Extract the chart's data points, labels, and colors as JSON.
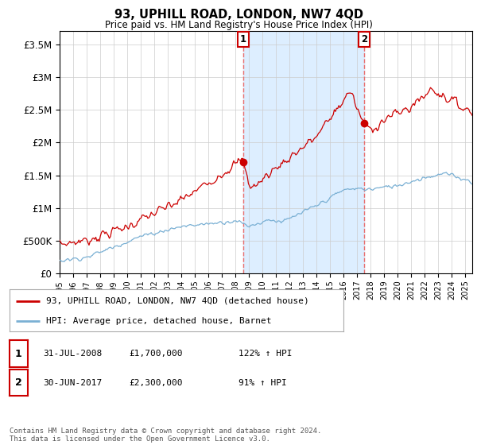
{
  "title": "93, UPHILL ROAD, LONDON, NW7 4QD",
  "subtitle": "Price paid vs. HM Land Registry's House Price Index (HPI)",
  "ylim": [
    0,
    3700000
  ],
  "yticks": [
    0,
    500000,
    1000000,
    1500000,
    2000000,
    2500000,
    3000000,
    3500000
  ],
  "xlim_start": 1995.0,
  "xlim_end": 2025.5,
  "marker1_x": 2008.58,
  "marker1_y": 1700000,
  "marker2_x": 2017.5,
  "marker2_y": 2300000,
  "red_line_color": "#cc0000",
  "blue_line_color": "#7ab0d4",
  "shaded_color": "#ddeeff",
  "vline_color": "#e87070",
  "background_color": "#ffffff",
  "grid_color": "#cccccc",
  "marker1_date": "31-JUL-2008",
  "marker1_price": "£1,700,000",
  "marker1_hpi": "122% ↑ HPI",
  "marker2_date": "30-JUN-2017",
  "marker2_price": "£2,300,000",
  "marker2_hpi": "91% ↑ HPI",
  "legend1": "93, UPHILL ROAD, LONDON, NW7 4QD (detached house)",
  "legend2": "HPI: Average price, detached house, Barnet",
  "footer": "Contains HM Land Registry data © Crown copyright and database right 2024.\nThis data is licensed under the Open Government Licence v3.0."
}
